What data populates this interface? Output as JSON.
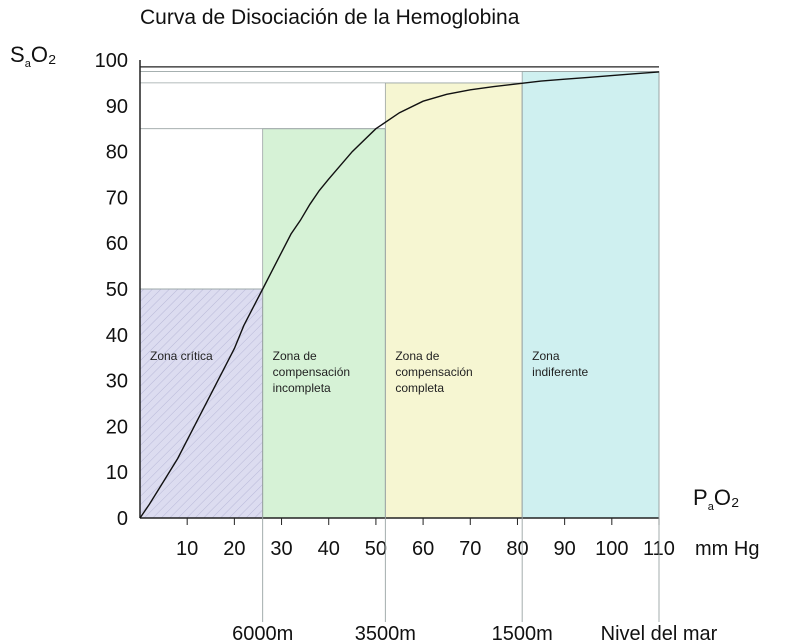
{
  "chart_data": {
    "type": "line",
    "title": "Curva de Disociación de la Hemoglobina",
    "ylabel": {
      "main": "S",
      "sub": "a",
      "tail": "O₂"
    },
    "xlabel": {
      "main": "P",
      "sub": "a",
      "tail": "O₂"
    },
    "xunit": "mm Hg",
    "xlim": [
      0,
      110
    ],
    "ylim": [
      0,
      100
    ],
    "xticks": [
      10,
      20,
      30,
      40,
      50,
      60,
      70,
      80,
      90,
      100,
      110
    ],
    "yticks": [
      0,
      10,
      20,
      30,
      40,
      50,
      60,
      70,
      80,
      90,
      100
    ],
    "series": [
      {
        "x": [
          0,
          2,
          5,
          8,
          10,
          12,
          15,
          18,
          20,
          22,
          24,
          26,
          28,
          30,
          32,
          34,
          36,
          38,
          40,
          45,
          50,
          55,
          60,
          65,
          70,
          75,
          80,
          85,
          90,
          95,
          100,
          105,
          110
        ],
        "y": [
          0,
          3,
          8,
          13,
          17,
          21,
          27,
          33,
          37,
          42,
          46,
          50,
          54,
          58,
          62,
          65,
          68.5,
          71.5,
          74,
          80,
          85,
          88.5,
          91,
          92.5,
          93.5,
          94.2,
          94.8,
          95.4,
          95.8,
          96.2,
          96.6,
          97,
          97.4
        ]
      }
    ],
    "zones": [
      {
        "label": "Zona crítica",
        "x0": 0,
        "x1": 26,
        "ytop": 50,
        "color": "#dcdcf0",
        "hatch": true
      },
      {
        "label": "Zona de compensación incompleta",
        "x0": 26,
        "x1": 52,
        "ytop": 85,
        "color": "#d6f2d6"
      },
      {
        "label": "Zona de compensación completa",
        "x0": 52,
        "x1": 81,
        "ytop": 95,
        "color": "#f6f6d2"
      },
      {
        "label": "Zona indiferente",
        "x0": 81,
        "x1": 110,
        "ytop": 97.5,
        "color": "#cff0f0"
      }
    ],
    "altitudes": [
      {
        "label": "6000m",
        "x": 26
      },
      {
        "label": "3500m",
        "x": 52
      },
      {
        "label": "1500m",
        "x": 81
      },
      {
        "label": "Nivel del mar",
        "x": 110
      }
    ]
  }
}
